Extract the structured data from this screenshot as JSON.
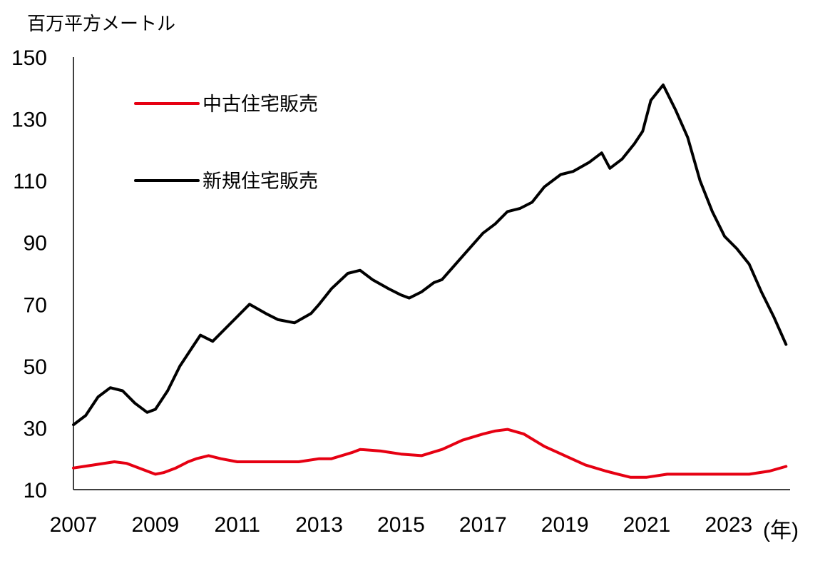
{
  "chart_data": {
    "type": "line",
    "ylabel": "百万平方メートル",
    "xunit": "(年)",
    "ylim": [
      10,
      150
    ],
    "xlim": [
      2007,
      2024.5
    ],
    "yticks": [
      10,
      30,
      50,
      70,
      90,
      110,
      130,
      150
    ],
    "xticks": [
      2007,
      2009,
      2011,
      2013,
      2015,
      2017,
      2019,
      2021,
      2023
    ],
    "grid": false,
    "legend_position": "top-left",
    "colors": {
      "中古住宅販売": "#e60012",
      "新規住宅販売": "#000000"
    },
    "series": [
      {
        "name": "中古住宅販売",
        "x": [
          2007.0,
          2007.5,
          2008.0,
          2008.3,
          2008.6,
          2008.9,
          2009.0,
          2009.2,
          2009.5,
          2009.8,
          2010.0,
          2010.3,
          2010.6,
          2011.0,
          2011.5,
          2012.0,
          2012.5,
          2013.0,
          2013.3,
          2013.8,
          2014.0,
          2014.5,
          2015.0,
          2015.5,
          2016.0,
          2016.5,
          2017.0,
          2017.3,
          2017.6,
          2018.0,
          2018.5,
          2019.0,
          2019.5,
          2020.0,
          2020.3,
          2020.6,
          2021.0,
          2021.5,
          2022.0,
          2022.5,
          2023.0,
          2023.5,
          2024.0,
          2024.4
        ],
        "values": [
          17,
          18,
          19,
          18.5,
          17,
          15.5,
          15,
          15.5,
          17,
          19,
          20,
          21,
          20,
          19,
          19,
          19,
          19,
          20,
          20,
          22,
          23,
          22.5,
          21.5,
          21,
          23,
          26,
          28,
          29,
          29.5,
          28,
          24,
          21,
          18,
          16,
          15,
          14,
          14,
          15,
          15,
          15,
          15,
          15,
          16,
          17.5
        ]
      },
      {
        "name": "新規住宅販売",
        "x": [
          2007.0,
          2007.3,
          2007.6,
          2007.9,
          2008.2,
          2008.5,
          2008.8,
          2009.0,
          2009.3,
          2009.6,
          2009.9,
          2010.1,
          2010.4,
          2010.7,
          2011.0,
          2011.3,
          2011.7,
          2012.0,
          2012.4,
          2012.8,
          2013.0,
          2013.3,
          2013.7,
          2014.0,
          2014.3,
          2014.7,
          2015.0,
          2015.2,
          2015.5,
          2015.8,
          2016.0,
          2016.4,
          2016.8,
          2017.0,
          2017.3,
          2017.6,
          2017.9,
          2018.2,
          2018.5,
          2018.9,
          2019.2,
          2019.6,
          2019.9,
          2020.1,
          2020.4,
          2020.7,
          2020.9,
          2021.1,
          2021.4,
          2021.7,
          2022.0,
          2022.3,
          2022.6,
          2022.9,
          2023.2,
          2023.5,
          2023.8,
          2024.1,
          2024.4
        ],
        "values": [
          31,
          34,
          40,
          43,
          42,
          38,
          35,
          36,
          42,
          50,
          56,
          60,
          58,
          62,
          66,
          70,
          67,
          65,
          64,
          67,
          70,
          75,
          80,
          81,
          78,
          75,
          73,
          72,
          74,
          77,
          78,
          84,
          90,
          93,
          96,
          100,
          101,
          103,
          108,
          112,
          113,
          116,
          119,
          114,
          117,
          122,
          126,
          136,
          141,
          133,
          124,
          110,
          100,
          92,
          88,
          83,
          74,
          66,
          57
        ]
      }
    ]
  }
}
